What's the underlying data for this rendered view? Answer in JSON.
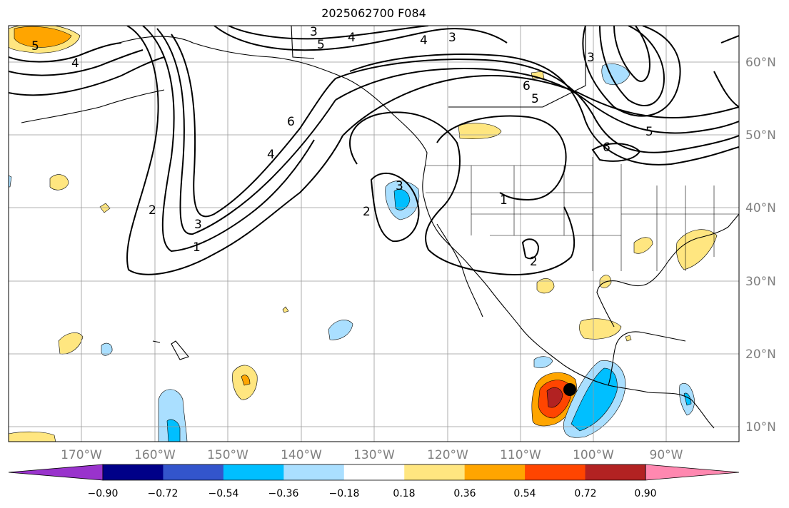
{
  "title": "2025062700 F084",
  "map": {
    "lat_labels": [
      "60°N",
      "50°N",
      "40°N",
      "30°N",
      "20°N",
      "10°N"
    ],
    "lon_labels": [
      "170°W",
      "160°W",
      "150°W",
      "140°W",
      "130°W",
      "120°W",
      "110°W",
      "100°W",
      "90°W"
    ],
    "contour_labels": [
      "3",
      "4",
      "5",
      "4",
      "3",
      "6",
      "5",
      "3",
      "5",
      "6",
      "6",
      "4",
      "3",
      "2",
      "1",
      "2",
      "3",
      "1",
      "2",
      "5",
      "4"
    ],
    "marker": {
      "type": "point",
      "color": "#000000"
    }
  },
  "colorbar": {
    "ticks": [
      "−0.90",
      "−0.72",
      "−0.54",
      "−0.36",
      "−0.18",
      "0.18",
      "0.36",
      "0.54",
      "0.72",
      "0.90"
    ],
    "colors": [
      "#9933cc",
      "#000088",
      "#3355cc",
      "#00bfff",
      "#aadfff",
      "#ffffff",
      "#ffe680",
      "#ffa500",
      "#ff4500",
      "#b22222",
      "#ff88b0"
    ]
  }
}
